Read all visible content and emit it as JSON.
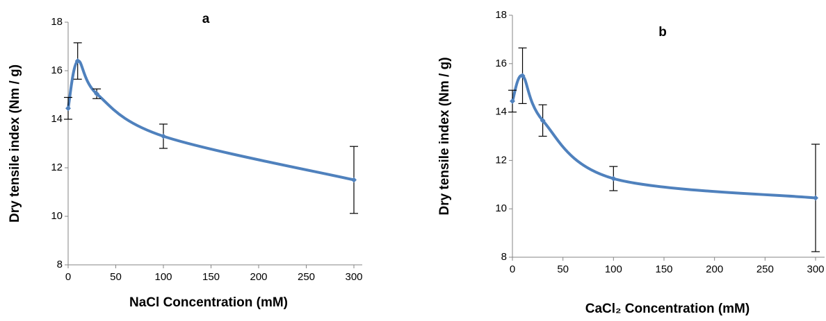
{
  "chart_data": [
    {
      "type": "line",
      "title": "a",
      "x_label": "NaCl  Concentration (mM)",
      "y_label": "Dry tensile index (Nm / g)",
      "x": [
        0,
        10,
        30,
        100,
        300
      ],
      "values": [
        14.45,
        16.4,
        15.05,
        13.3,
        11.5
      ],
      "errors": [
        0.45,
        0.75,
        0.2,
        0.5,
        1.38
      ],
      "color": "#4f81bd",
      "smooth": true,
      "xlim": [
        0,
        310
      ],
      "xticks": [
        0,
        50,
        100,
        150,
        200,
        250,
        300
      ],
      "ylim": [
        8,
        18
      ],
      "yticks": [
        8,
        10,
        12,
        14,
        16,
        18
      ]
    },
    {
      "type": "line",
      "title": "b",
      "x_label": "CaCl₂  Concentration (mM)",
      "y_label": "Dry tensile index (Nm / g)",
      "x": [
        0,
        10,
        30,
        100,
        300
      ],
      "values": [
        14.45,
        15.5,
        13.65,
        11.25,
        10.45
      ],
      "errors": [
        0.45,
        1.15,
        0.65,
        0.5,
        2.22
      ],
      "color": "#4f81bd",
      "smooth": true,
      "xlim": [
        0,
        310
      ],
      "xticks": [
        0,
        50,
        100,
        150,
        200,
        250,
        300
      ],
      "ylim": [
        8,
        18
      ],
      "yticks": [
        8,
        10,
        12,
        14,
        16,
        18
      ]
    }
  ]
}
